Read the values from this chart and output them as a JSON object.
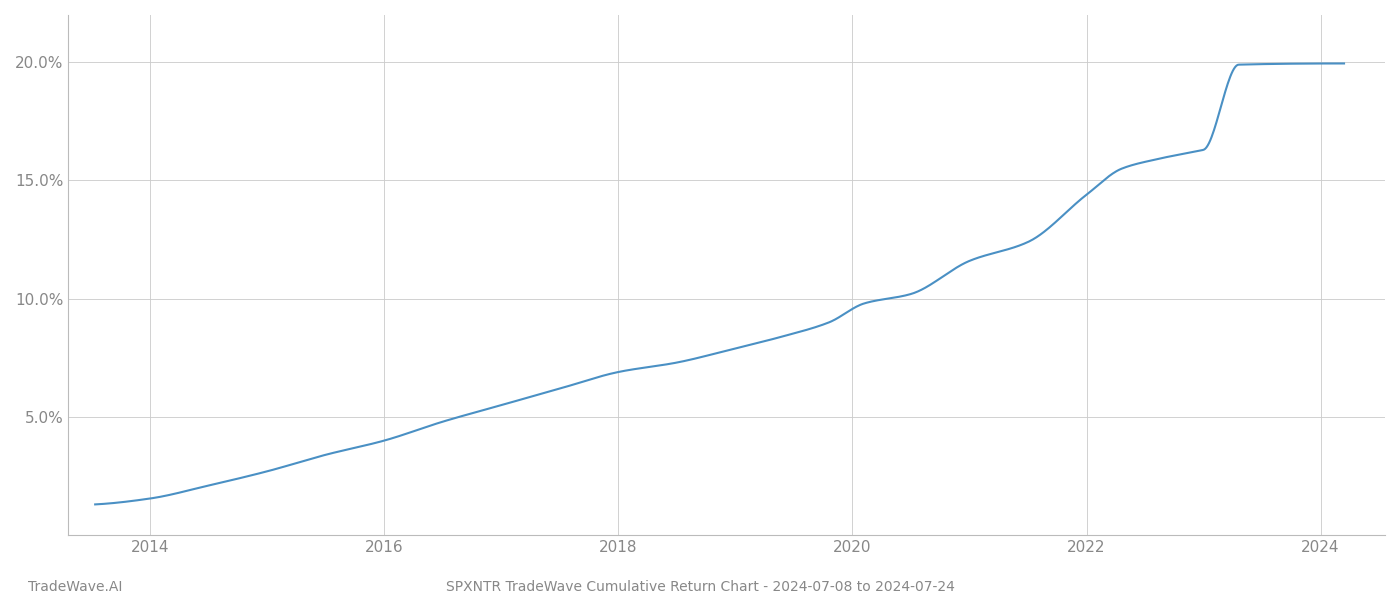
{
  "title": "SPXNTR TradeWave Cumulative Return Chart - 2024-07-08 to 2024-07-24",
  "watermark": "TradeWave.AI",
  "line_color": "#4a90c4",
  "background_color": "#ffffff",
  "grid_color": "#cccccc",
  "tick_label_color": "#888888",
  "title_color": "#888888",
  "watermark_color": "#888888",
  "x_data": [
    2013.53,
    2014.0,
    2014.5,
    2015.0,
    2015.5,
    2016.0,
    2016.5,
    2017.0,
    2017.5,
    2018.0,
    2018.5,
    2019.0,
    2019.4,
    2019.8,
    2020.1,
    2020.5,
    2021.0,
    2021.5,
    2022.0,
    2022.3,
    2022.6,
    2022.9,
    2023.0,
    2023.3,
    2024.2
  ],
  "y_data": [
    1.3,
    1.55,
    2.1,
    2.7,
    3.4,
    4.0,
    4.8,
    5.5,
    6.2,
    6.9,
    7.3,
    7.9,
    8.4,
    9.0,
    9.8,
    10.2,
    11.6,
    12.4,
    14.4,
    15.5,
    15.9,
    16.2,
    16.3,
    19.9,
    19.95
  ],
  "xlim": [
    2013.3,
    2024.55
  ],
  "ylim": [
    0,
    22
  ],
  "yticks": [
    5.0,
    10.0,
    15.0,
    20.0
  ],
  "ytick_labels": [
    "5.0%",
    "10.0%",
    "15.0%",
    "20.0%"
  ],
  "xticks": [
    2014,
    2016,
    2018,
    2020,
    2022,
    2024
  ],
  "line_width": 1.5,
  "figsize": [
    14,
    6
  ],
  "dpi": 100
}
